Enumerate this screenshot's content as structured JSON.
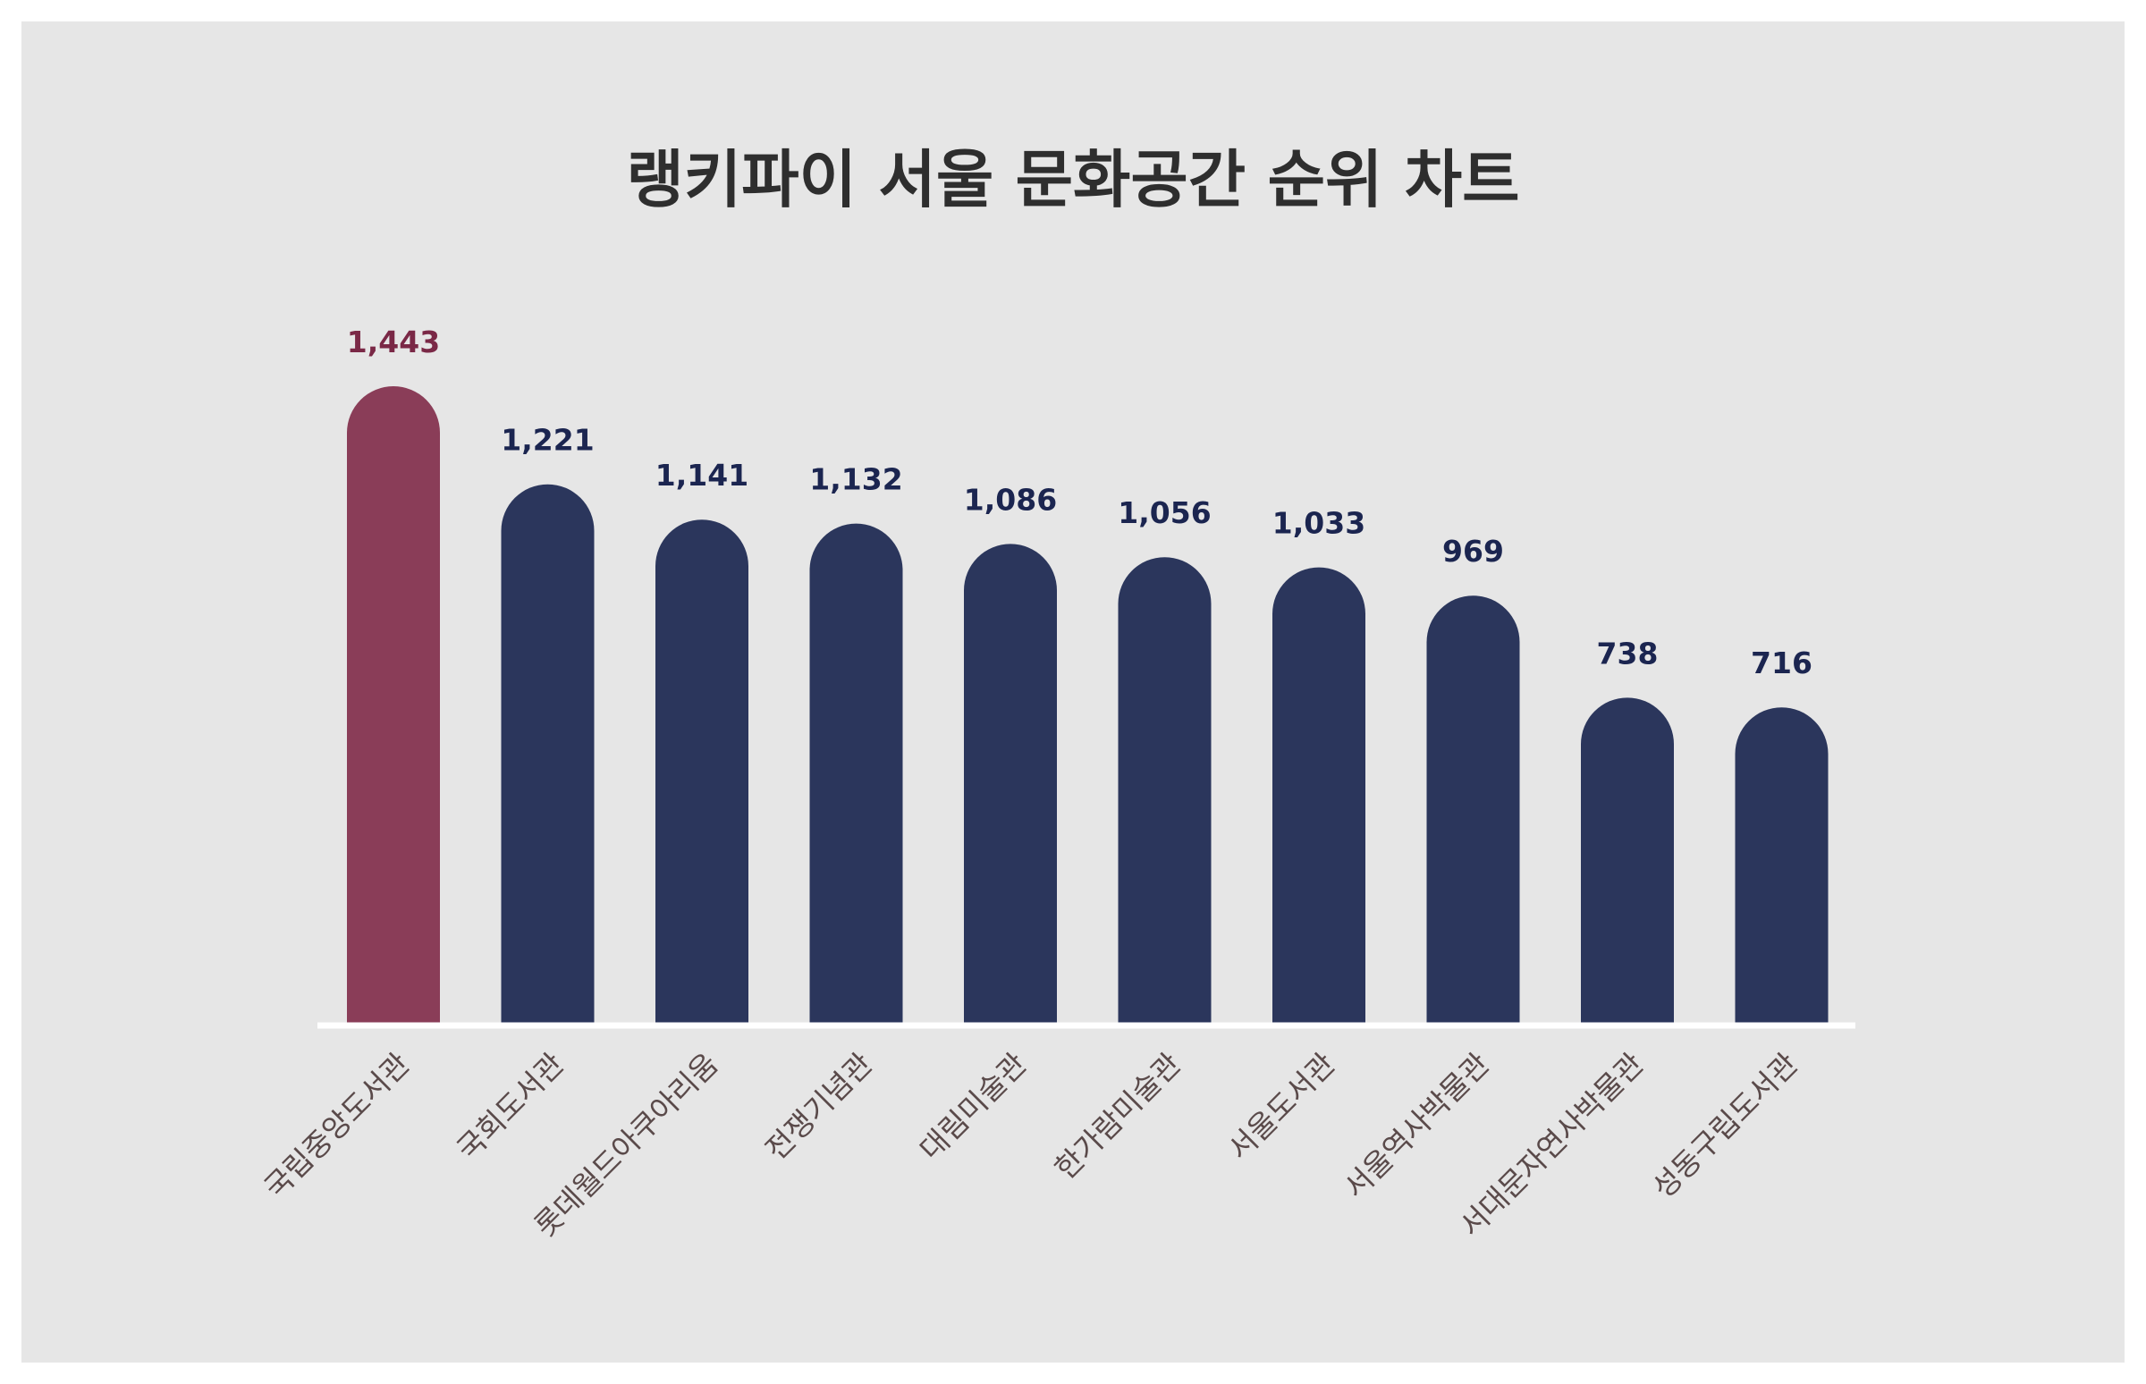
{
  "chart_data": {
    "type": "bar",
    "title": "랭키파이 서울 문화공간 순위 차트",
    "xlabel": "",
    "ylabel": "",
    "categories": [
      "국립중앙도서관",
      "국회도서관",
      "롯데월드아쿠아리움",
      "전쟁기념관",
      "대림미술관",
      "한가람미술관",
      "서울도서관",
      "서울역사박물관",
      "서대문자연사박물관",
      "성동구립도서관"
    ],
    "values": [
      1443,
      1221,
      1141,
      1132,
      1086,
      1056,
      1033,
      969,
      738,
      716
    ],
    "value_labels": [
      "1,443",
      "1,221",
      "1,141",
      "1,132",
      "1,086",
      "1,056",
      "1,033",
      "969",
      "738",
      "716"
    ],
    "ylim": [
      0,
      1443
    ],
    "grid": false,
    "legend": "none",
    "colors": {
      "highlight": "#8a3d58",
      "bar": "#2b365c",
      "highlight_label": "#7a2846",
      "label": "#1b2550",
      "background": "#e6e6e6",
      "baseline": "#ffffff"
    }
  }
}
